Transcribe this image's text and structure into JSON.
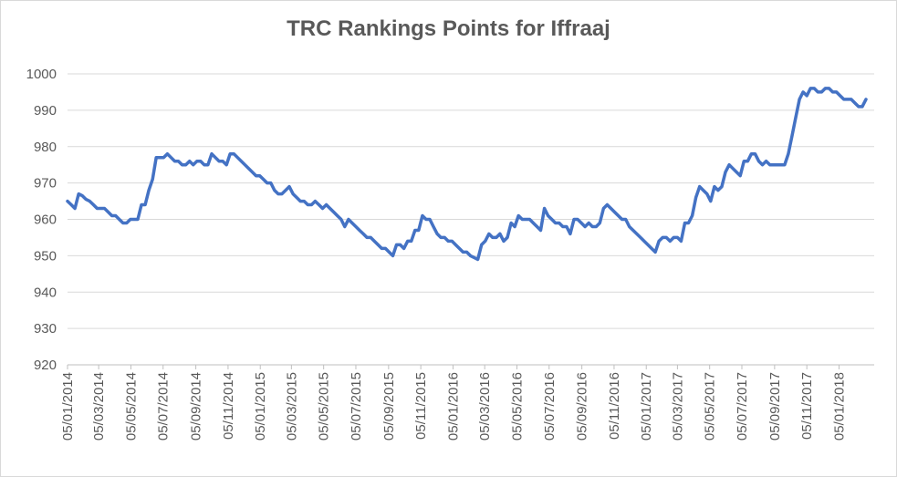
{
  "chart_data": {
    "type": "line",
    "title": "TRC Rankings Points for Iffraaj",
    "xlabel": "",
    "ylabel": "",
    "ylim": [
      920,
      1000
    ],
    "y_ticks": [
      "920",
      "930",
      "940",
      "950",
      "960",
      "970",
      "980",
      "990",
      "1000"
    ],
    "x_tick_labels": [
      "05/01/2014",
      "05/03/2014",
      "05/05/2014",
      "05/07/2014",
      "05/09/2014",
      "05/11/2014",
      "05/01/2015",
      "05/03/2015",
      "05/05/2015",
      "05/07/2015",
      "05/09/2015",
      "05/11/2015",
      "05/01/2016",
      "05/03/2016",
      "05/05/2016",
      "05/07/2016",
      "05/09/2016",
      "05/11/2016",
      "05/01/2017",
      "05/03/2017",
      "05/05/2017",
      "05/07/2017",
      "05/09/2017",
      "05/11/2017",
      "05/01/2018"
    ],
    "grid": true,
    "legend": "none",
    "color": "#4472c4",
    "series": [
      {
        "x": [
          "05/01/2014",
          "12/01/2014",
          "19/01/2014",
          "26/01/2014",
          "02/02/2014",
          "09/02/2014",
          "16/02/2014",
          "23/02/2014",
          "02/03/2014",
          "09/03/2014",
          "16/03/2014",
          "23/03/2014",
          "30/03/2014",
          "06/04/2014",
          "13/04/2014",
          "20/04/2014",
          "27/04/2014",
          "04/05/2014",
          "11/05/2014",
          "18/05/2014",
          "25/05/2014",
          "01/06/2014",
          "08/06/2014",
          "15/06/2014",
          "22/06/2014",
          "29/06/2014",
          "06/07/2014",
          "13/07/2014",
          "20/07/2014",
          "27/07/2014",
          "03/08/2014",
          "10/08/2014",
          "17/08/2014",
          "24/08/2014",
          "31/08/2014",
          "07/09/2014",
          "14/09/2014",
          "21/09/2014",
          "28/09/2014",
          "05/10/2014",
          "12/10/2014",
          "19/10/2014",
          "26/10/2014",
          "02/11/2014",
          "09/11/2014",
          "16/11/2014",
          "23/11/2014",
          "30/11/2014",
          "07/12/2014",
          "14/12/2014",
          "21/12/2014",
          "28/12/2014",
          "04/01/2015",
          "11/01/2015",
          "18/01/2015",
          "25/01/2015",
          "01/02/2015",
          "08/02/2015",
          "15/02/2015",
          "22/02/2015",
          "01/03/2015",
          "08/03/2015",
          "15/03/2015",
          "22/03/2015",
          "29/03/2015",
          "05/04/2015",
          "12/04/2015",
          "19/04/2015",
          "26/04/2015",
          "03/05/2015",
          "10/05/2015",
          "17/05/2015",
          "24/05/2015",
          "31/05/2015",
          "07/06/2015",
          "14/06/2015",
          "21/06/2015",
          "28/06/2015",
          "05/07/2015",
          "12/07/2015",
          "19/07/2015",
          "26/07/2015",
          "02/08/2015",
          "09/08/2015",
          "16/08/2015",
          "23/08/2015",
          "30/08/2015",
          "06/09/2015",
          "13/09/2015",
          "20/09/2015",
          "27/09/2015",
          "04/10/2015",
          "11/10/2015",
          "18/10/2015",
          "25/10/2015",
          "01/11/2015",
          "08/11/2015",
          "15/11/2015",
          "22/11/2015",
          "29/11/2015",
          "06/12/2015",
          "13/12/2015",
          "20/12/2015",
          "27/12/2015",
          "03/01/2016",
          "10/01/2016",
          "17/01/2016",
          "24/01/2016",
          "31/01/2016",
          "07/02/2016",
          "14/02/2016",
          "21/02/2016",
          "28/02/2016",
          "06/03/2016",
          "13/03/2016",
          "20/03/2016",
          "27/03/2016",
          "03/04/2016",
          "10/04/2016",
          "17/04/2016",
          "24/04/2016",
          "01/05/2016",
          "08/05/2016",
          "15/05/2016",
          "22/05/2016",
          "29/05/2016",
          "05/06/2016",
          "12/06/2016",
          "19/06/2016",
          "26/06/2016",
          "03/07/2016",
          "10/07/2016",
          "17/07/2016",
          "24/07/2016",
          "31/07/2016",
          "07/08/2016",
          "14/08/2016",
          "21/08/2016",
          "28/08/2016",
          "04/09/2016",
          "11/09/2016",
          "18/09/2016",
          "25/09/2016",
          "02/10/2016",
          "09/10/2016",
          "16/10/2016",
          "23/10/2016",
          "30/10/2016",
          "06/11/2016",
          "13/11/2016",
          "20/11/2016",
          "27/11/2016",
          "04/12/2016",
          "11/12/2016",
          "18/12/2016",
          "25/12/2016",
          "01/01/2017",
          "08/01/2017",
          "15/01/2017",
          "22/01/2017",
          "29/01/2017",
          "05/02/2017",
          "12/02/2017",
          "19/02/2017",
          "26/02/2017",
          "05/03/2017",
          "12/03/2017",
          "19/03/2017",
          "26/03/2017",
          "02/04/2017",
          "09/04/2017",
          "16/04/2017",
          "23/04/2017",
          "30/04/2017",
          "07/05/2017",
          "14/05/2017",
          "21/05/2017",
          "28/05/2017",
          "04/06/2017",
          "11/06/2017",
          "18/06/2017",
          "25/06/2017",
          "02/07/2017",
          "09/07/2017",
          "16/07/2017",
          "23/07/2017",
          "30/07/2017",
          "06/08/2017",
          "13/08/2017",
          "20/08/2017",
          "27/08/2017",
          "03/09/2017",
          "10/09/2017",
          "17/09/2017",
          "24/09/2017",
          "01/10/2017",
          "08/10/2017",
          "15/10/2017",
          "22/10/2017",
          "29/10/2017",
          "05/11/2017",
          "12/11/2017",
          "19/11/2017",
          "26/11/2017",
          "03/12/2017",
          "10/12/2017",
          "17/12/2017",
          "24/12/2017",
          "31/12/2017",
          "07/01/2018",
          "14/01/2018",
          "21/01/2018",
          "28/01/2018",
          "04/02/2018",
          "11/02/2018",
          "18/02/2018",
          "25/02/2018"
        ],
        "values": [
          965,
          964,
          963,
          967,
          966.5,
          965.5,
          965,
          964,
          963,
          963,
          963,
          962,
          961,
          961,
          960,
          959,
          959,
          960,
          960,
          960,
          964,
          964,
          968,
          971,
          977,
          977,
          977,
          978,
          977,
          976,
          976,
          975,
          975,
          976,
          975,
          976,
          976,
          975,
          975,
          978,
          977,
          976,
          976,
          975,
          978,
          978,
          977,
          976,
          975,
          974,
          973,
          972,
          972,
          971,
          970,
          970,
          968,
          967,
          967,
          968,
          969,
          967,
          966,
          965,
          965,
          964,
          964,
          965,
          964,
          963,
          964,
          963,
          962,
          961,
          960,
          958,
          960,
          959,
          958,
          957,
          956,
          955,
          955,
          954,
          953,
          952,
          952,
          951,
          950,
          953,
          953,
          952,
          954,
          954,
          957,
          957,
          961,
          960,
          960,
          958,
          956,
          955,
          955,
          954,
          954,
          953,
          952,
          951,
          951,
          950,
          949.5,
          949,
          953,
          954,
          956,
          955,
          955,
          956,
          954,
          955,
          959,
          958,
          961,
          960,
          960,
          960,
          959,
          958,
          957,
          963,
          961,
          960,
          959,
          959,
          958,
          958,
          956,
          960,
          960,
          959,
          958,
          959,
          958,
          958,
          959,
          963,
          964,
          963,
          962,
          961,
          960,
          960,
          958,
          957,
          956,
          955,
          954,
          953,
          952,
          951,
          954,
          955,
          955,
          954,
          955,
          955,
          954,
          959,
          959,
          961,
          966,
          969,
          968,
          967,
          965,
          969,
          968,
          969,
          973,
          975,
          974,
          973,
          972,
          976,
          976,
          978,
          978,
          976,
          975,
          976,
          975,
          975,
          975,
          975,
          975,
          978,
          983,
          988,
          993,
          995,
          994,
          996,
          996,
          995,
          995,
          996,
          996,
          995,
          995,
          994,
          993,
          993,
          993,
          992,
          991,
          991,
          993
        ]
      }
    ]
  }
}
